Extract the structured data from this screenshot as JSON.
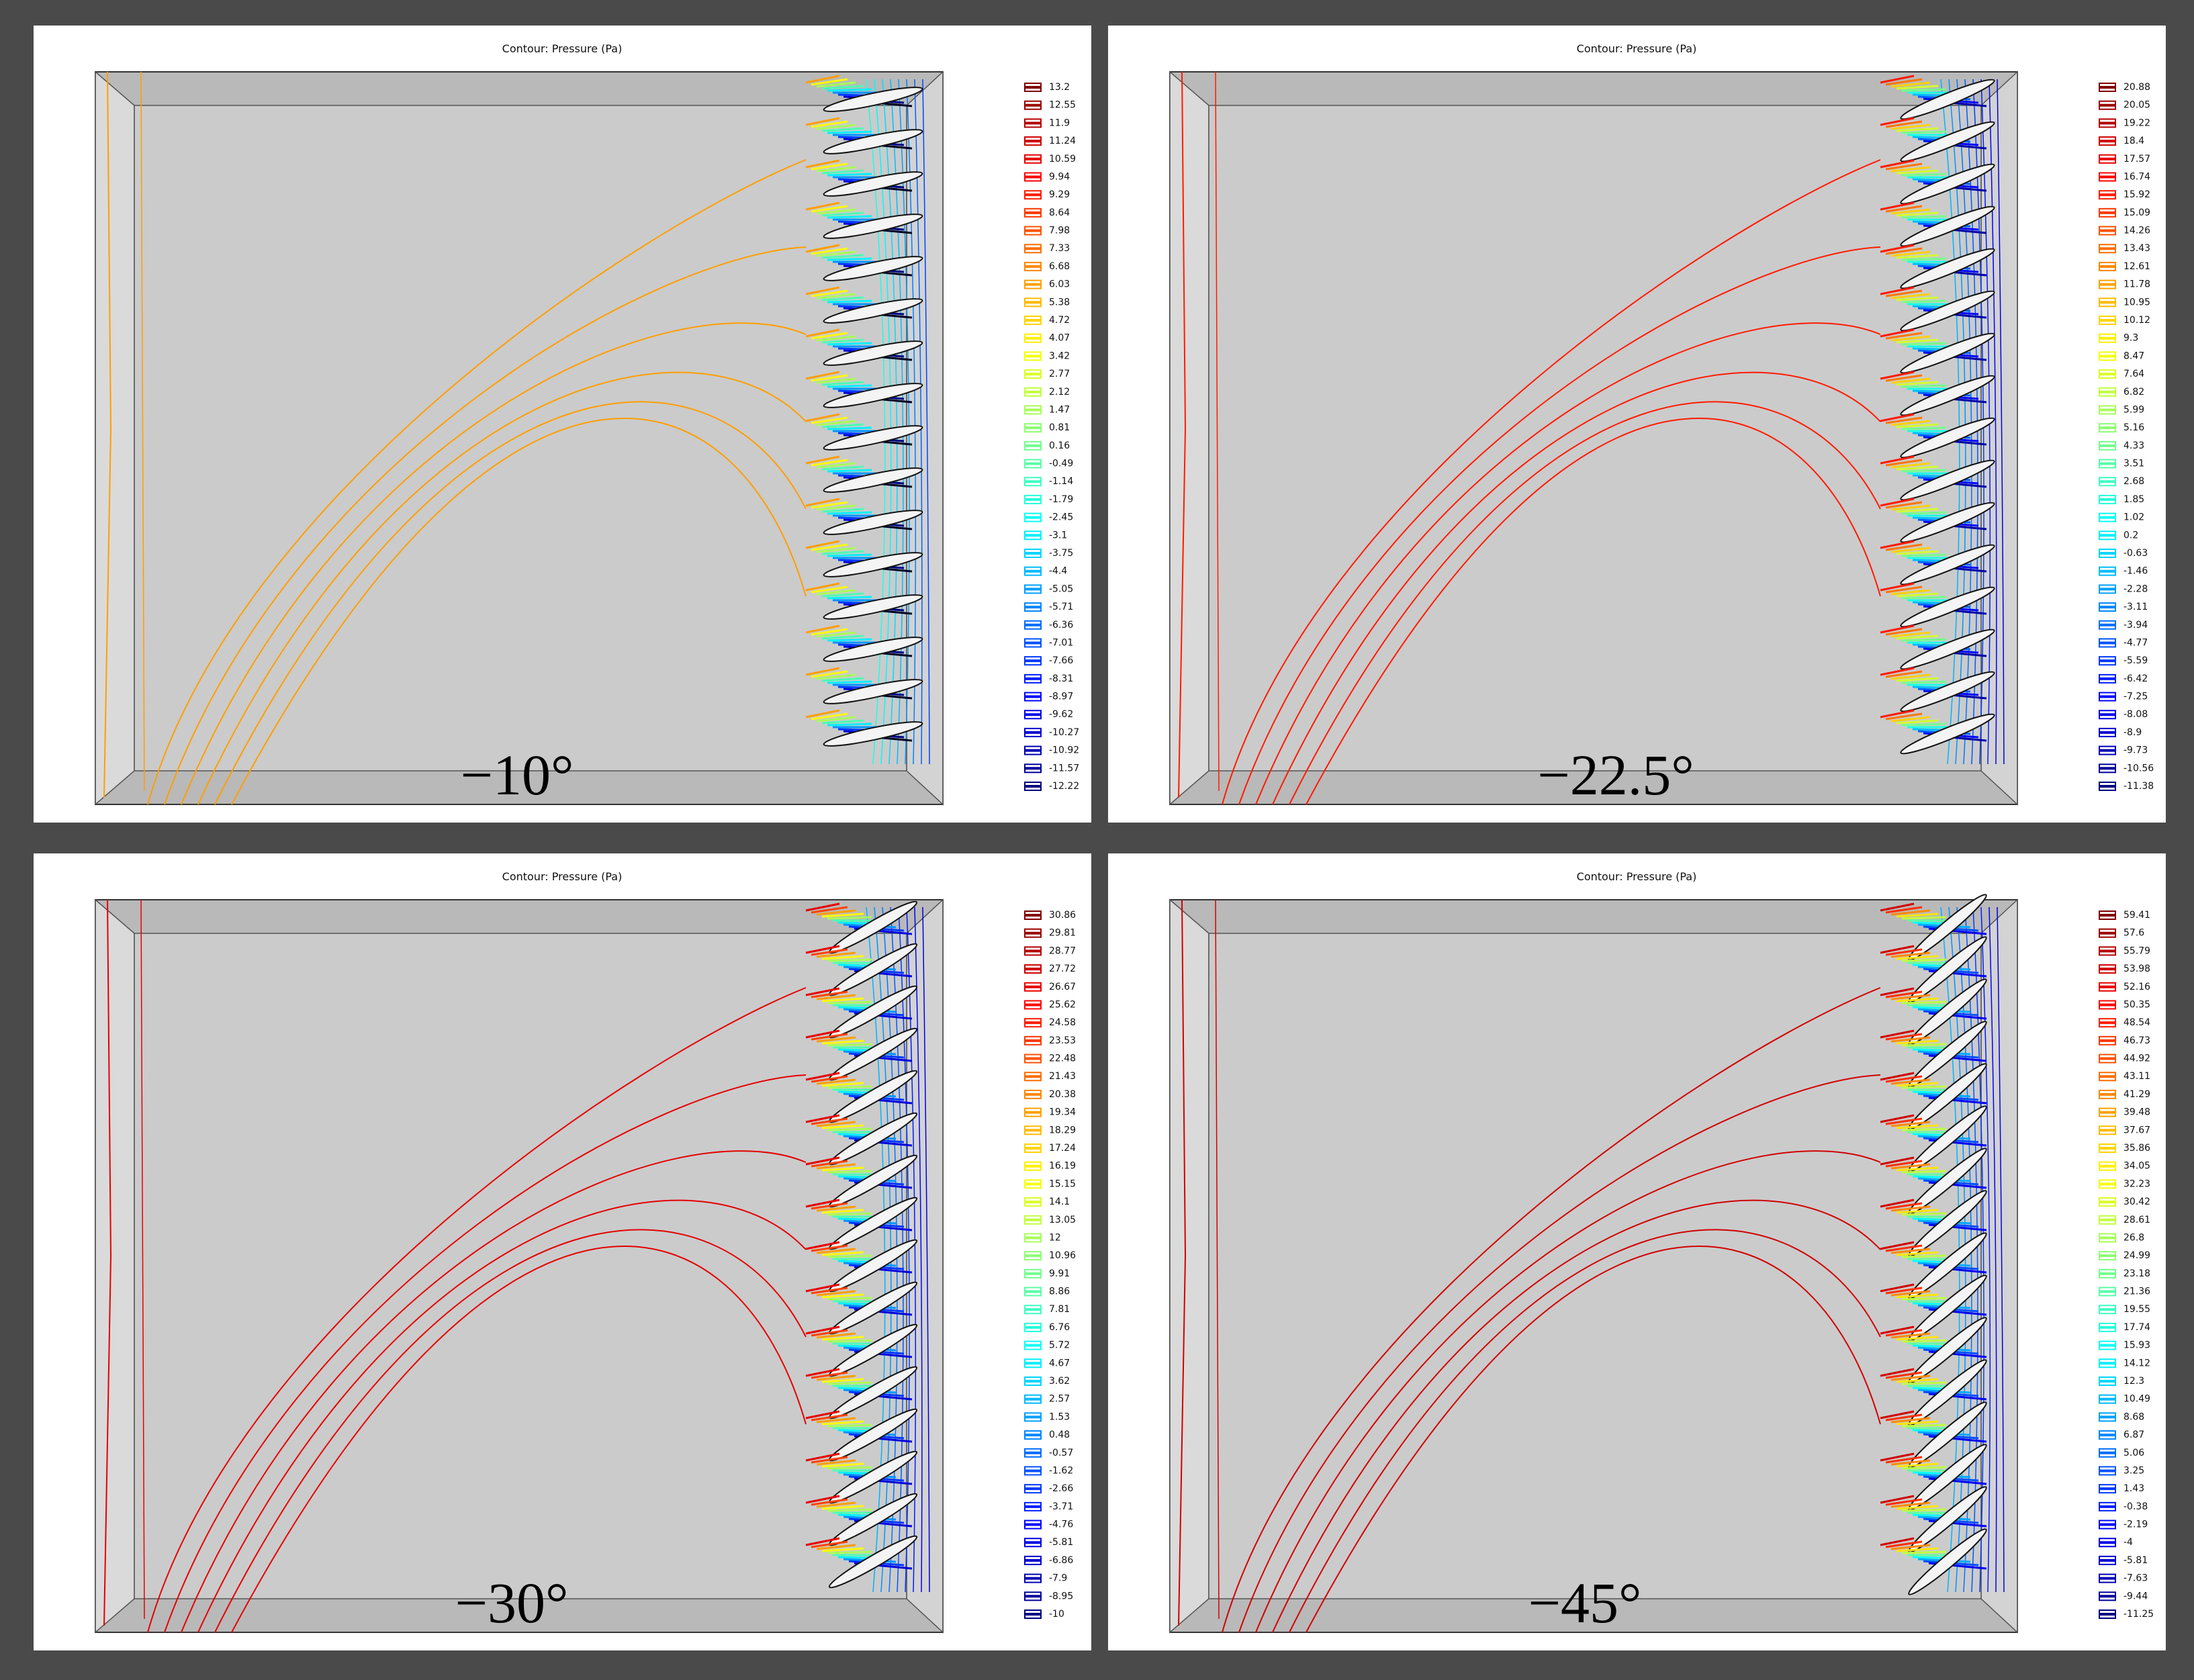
{
  "panels": [
    {
      "title": "Contour: Pressure (Pa)",
      "angle_label": "−10°",
      "legend_levels": [
        13.2,
        12.55,
        11.9,
        11.24,
        10.59,
        9.94,
        9.29,
        8.64,
        7.98,
        7.33,
        6.68,
        6.03,
        5.38,
        4.72,
        4.07,
        3.42,
        2.77,
        2.12,
        1.47,
        0.81,
        0.16,
        -0.49,
        -1.14,
        -1.79,
        -2.45,
        -3.1,
        -3.75,
        -4.4,
        -5.05,
        -5.71,
        -6.36,
        -7.01,
        -7.66,
        -8.31,
        -8.97,
        -9.62,
        -10.27,
        -10.92,
        -11.57,
        -12.22
      ]
    },
    {
      "title": "Contour: Pressure (Pa)",
      "angle_label": "−22.5°",
      "legend_levels": [
        20.88,
        20.05,
        19.22,
        18.4,
        17.57,
        16.74,
        15.92,
        15.09,
        14.26,
        13.43,
        12.61,
        11.78,
        10.95,
        10.12,
        9.3,
        8.47,
        7.64,
        6.82,
        5.99,
        5.16,
        4.33,
        3.51,
        2.68,
        1.85,
        1.02,
        0.2,
        -0.63,
        -1.46,
        -2.28,
        -3.11,
        -3.94,
        -4.77,
        -5.59,
        -6.42,
        -7.25,
        -8.08,
        -8.9,
        -9.73,
        -10.56,
        -11.38
      ]
    },
    {
      "title": "Contour: Pressure (Pa)",
      "angle_label": "−30°",
      "legend_levels": [
        30.86,
        29.81,
        28.77,
        27.72,
        26.67,
        25.62,
        24.58,
        23.53,
        22.48,
        21.43,
        20.38,
        19.34,
        18.29,
        17.24,
        16.19,
        15.15,
        14.1,
        13.05,
        12,
        10.96,
        9.91,
        8.86,
        7.81,
        6.76,
        5.72,
        4.67,
        3.62,
        2.57,
        1.53,
        0.48,
        -0.57,
        -1.62,
        -2.66,
        -3.71,
        -4.76,
        -5.81,
        -6.86,
        -7.9,
        -8.95,
        -10
      ]
    },
    {
      "title": "Contour: Pressure (Pa)",
      "angle_label": "−45°",
      "legend_levels": [
        59.41,
        57.6,
        55.79,
        53.98,
        52.16,
        50.35,
        48.54,
        46.73,
        44.92,
        43.11,
        41.29,
        39.48,
        37.67,
        35.86,
        34.05,
        32.23,
        30.42,
        28.61,
        26.8,
        24.99,
        23.18,
        21.36,
        19.55,
        17.74,
        15.93,
        14.12,
        12.3,
        10.49,
        8.68,
        6.87,
        5.06,
        3.25,
        1.43,
        -0.38,
        -2.19,
        -4,
        -5.81,
        -7.63,
        -9.44,
        -11.25
      ]
    }
  ]
}
